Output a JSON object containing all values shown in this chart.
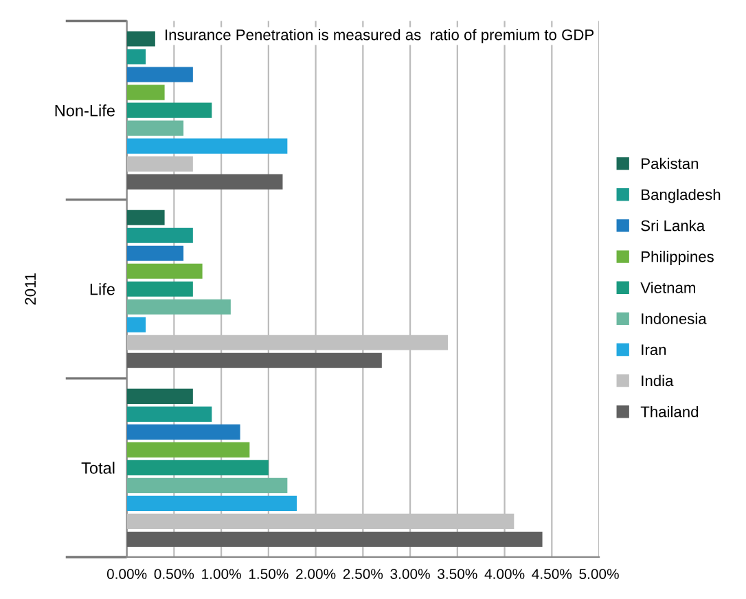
{
  "chart_data": {
    "type": "bar",
    "orientation": "horizontal",
    "ylabel": "2011",
    "annotations": [
      "Insurance Penetration is measured as  ratio of premium to GDP"
    ],
    "categories": [
      "Non-Life",
      "Life",
      "Total"
    ],
    "series": [
      {
        "name": "Pakistan",
        "color": "#1a6b58",
        "values": [
          0.3,
          0.4,
          0.7
        ]
      },
      {
        "name": "Bangladesh",
        "color": "#1a9a8e",
        "values": [
          0.2,
          0.7,
          0.9
        ]
      },
      {
        "name": "Sri Lanka",
        "color": "#1f7cc0",
        "values": [
          0.7,
          0.6,
          1.2
        ]
      },
      {
        "name": "Philippines",
        "color": "#6db33f",
        "values": [
          0.4,
          0.8,
          1.3
        ]
      },
      {
        "name": "Vietnam",
        "color": "#1a9a80",
        "values": [
          0.9,
          0.7,
          1.5
        ]
      },
      {
        "name": "Indonesia",
        "color": "#6bb8a0",
        "values": [
          0.6,
          1.1,
          1.7
        ]
      },
      {
        "name": "Iran",
        "color": "#22a8e0",
        "values": [
          1.7,
          0.2,
          1.8
        ]
      },
      {
        "name": "India",
        "color": "#c0c0c0",
        "values": [
          0.7,
          3.4,
          4.1
        ]
      },
      {
        "name": "Thailand",
        "color": "#606060",
        "values": [
          1.65,
          2.7,
          4.4
        ]
      }
    ],
    "xlim": [
      0,
      5
    ],
    "xticks": [
      {
        "value": 0,
        "label": "0.00%"
      },
      {
        "value": 0.5,
        "label": "0.50%"
      },
      {
        "value": 1,
        "label": "1.00%"
      },
      {
        "value": 1.5,
        "label": "1.50%"
      },
      {
        "value": 2,
        "label": "2.00%"
      },
      {
        "value": 2.5,
        "label": "2.50%"
      },
      {
        "value": 3,
        "label": "3.00%"
      },
      {
        "value": 3.5,
        "label": "3.50%"
      },
      {
        "value": 4,
        "label": "4.00%"
      },
      {
        "value": 4.5,
        "label": "4.50%"
      },
      {
        "value": 5,
        "label": "5.00%"
      }
    ],
    "grid": "x",
    "legend": "right"
  }
}
